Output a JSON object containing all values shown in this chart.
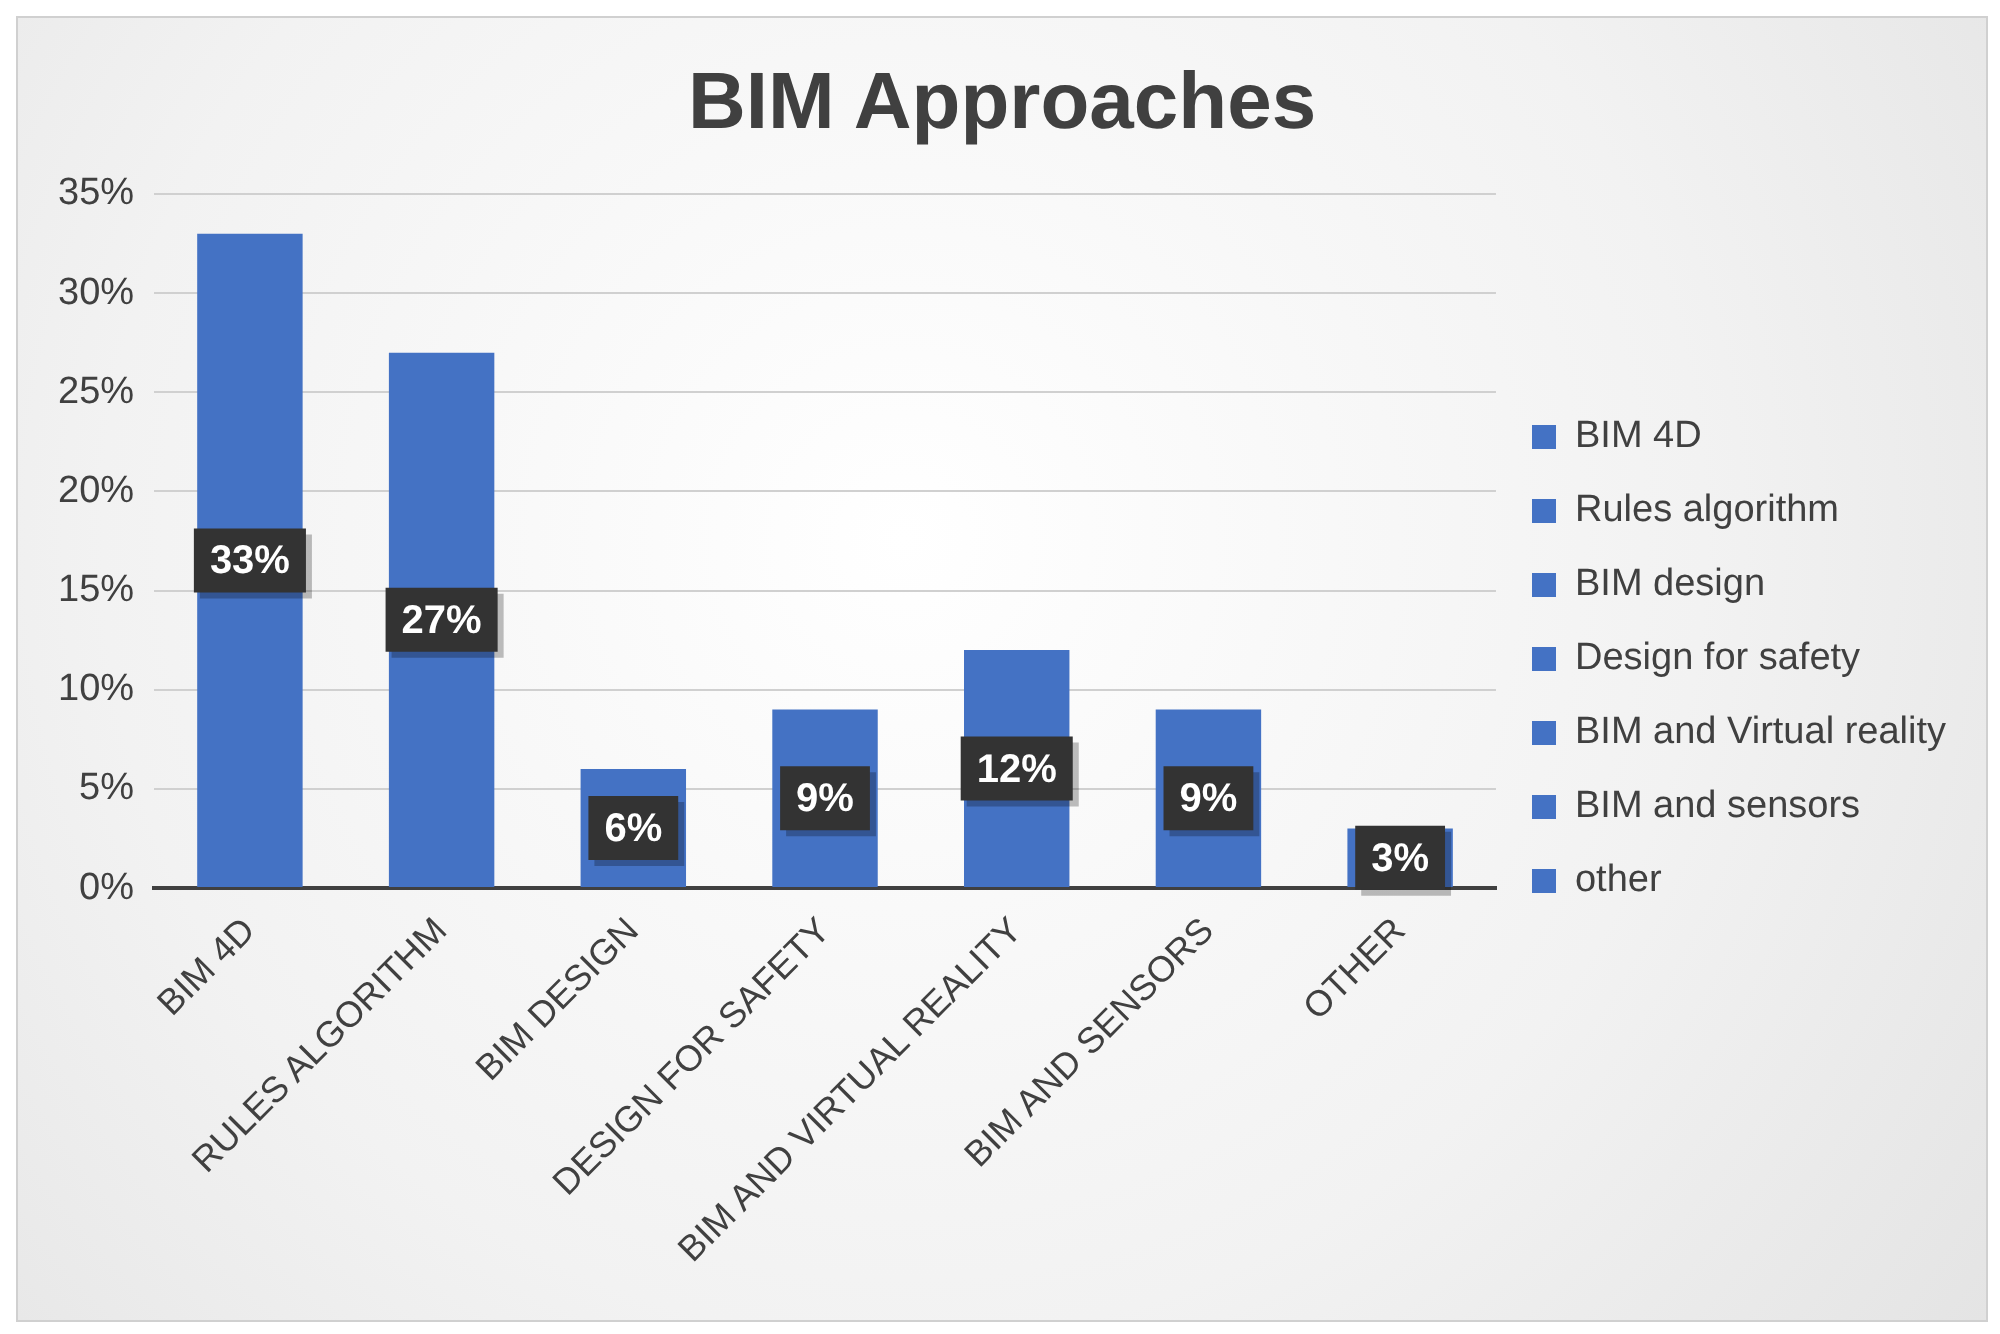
{
  "chart_data": {
    "type": "bar",
    "title": "BIM Approaches",
    "categories": [
      "BIM 4D",
      "RULES ALGORITHM",
      "BIM DESIGN",
      "DESIGN FOR SAFETY",
      "BIM AND VIRTUAL REALITY",
      "BIM AND SENSORS",
      "OTHER"
    ],
    "series": [
      {
        "name": "BIM 4D",
        "color": "#4472c4",
        "values": [
          33,
          null,
          null,
          null,
          null,
          null,
          null
        ],
        "value_labels": [
          "33%",
          null,
          null,
          null,
          null,
          null,
          null
        ]
      },
      {
        "name": "Rules algorithm",
        "color": "#4472c4",
        "values": [
          null,
          27,
          null,
          null,
          null,
          null,
          null
        ],
        "value_labels": [
          null,
          "27%",
          null,
          null,
          null,
          null,
          null
        ]
      },
      {
        "name": "BIM design",
        "color": "#4472c4",
        "values": [
          null,
          null,
          6,
          null,
          null,
          null,
          null
        ],
        "value_labels": [
          null,
          null,
          "6%",
          null,
          null,
          null,
          null
        ]
      },
      {
        "name": "Design for safety",
        "color": "#4472c4",
        "values": [
          null,
          null,
          null,
          9,
          null,
          null,
          null
        ],
        "value_labels": [
          null,
          null,
          null,
          "9%",
          null,
          null,
          null
        ]
      },
      {
        "name": "BIM and Virtual reality",
        "color": "#4472c4",
        "values": [
          null,
          null,
          null,
          null,
          12,
          null,
          null
        ],
        "value_labels": [
          null,
          null,
          null,
          null,
          "12%",
          null,
          null
        ]
      },
      {
        "name": "BIM and sensors",
        "color": "#4472c4",
        "values": [
          null,
          null,
          null,
          null,
          null,
          9,
          null
        ],
        "value_labels": [
          null,
          null,
          null,
          null,
          null,
          "9%",
          null
        ]
      },
      {
        "name": "other",
        "color": "#4472c4",
        "values": [
          null,
          null,
          null,
          null,
          null,
          null,
          3
        ],
        "value_labels": [
          null,
          null,
          null,
          null,
          null,
          null,
          "3%"
        ]
      }
    ],
    "stacked": true,
    "ylim": [
      0,
      35
    ],
    "yticks": [
      {
        "value": 0,
        "label": "0%"
      },
      {
        "value": 5,
        "label": "5%"
      },
      {
        "value": 10,
        "label": "10%"
      },
      {
        "value": 15,
        "label": "15%"
      },
      {
        "value": 20,
        "label": "20%"
      },
      {
        "value": 25,
        "label": "25%"
      },
      {
        "value": 30,
        "label": "30%"
      },
      {
        "value": 35,
        "label": "35%"
      }
    ],
    "grid": "y",
    "legend": "right"
  }
}
